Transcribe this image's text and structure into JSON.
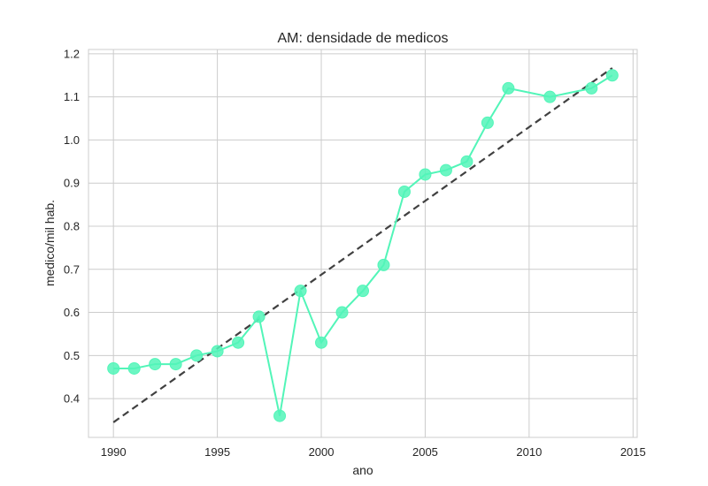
{
  "chart_data": {
    "type": "line",
    "title": "AM: densidade de medicos",
    "xlabel": "ano",
    "ylabel": "medico/mil hab.",
    "xlim": [
      1988.8,
      2015.2
    ],
    "ylim": [
      0.31,
      1.21
    ],
    "xticks": [
      1990,
      1995,
      2000,
      2005,
      2010,
      2015
    ],
    "yticks": [
      0.4,
      0.5,
      0.6,
      0.7,
      0.8,
      0.9,
      1.0,
      1.1,
      1.2
    ],
    "ytick_labels": [
      "0.4",
      "0.5",
      "0.6",
      "0.7",
      "0.8",
      "0.9",
      "1.0",
      "1.1",
      "1.2"
    ],
    "grid": true,
    "series": [
      {
        "x": [
          1990,
          1991,
          1992,
          1993,
          1994,
          1995,
          1996,
          1997,
          1998,
          1999,
          2000,
          2001,
          2002,
          2003,
          2004,
          2005,
          2006,
          2007,
          2008,
          2009,
          2011,
          2013,
          2014
        ],
        "values": [
          0.47,
          0.47,
          0.48,
          0.48,
          0.5,
          0.51,
          0.53,
          0.59,
          0.36,
          0.65,
          0.53,
          0.6,
          0.65,
          0.71,
          0.88,
          0.92,
          0.93,
          0.95,
          1.04,
          1.12,
          1.1,
          1.12,
          1.15
        ],
        "color": "#52f5b8",
        "marker": "circle"
      }
    ],
    "trendline": {
      "x": [
        1990,
        2014
      ],
      "values": [
        0.345,
        1.167
      ],
      "color": "#404040",
      "style": "dashed"
    }
  }
}
